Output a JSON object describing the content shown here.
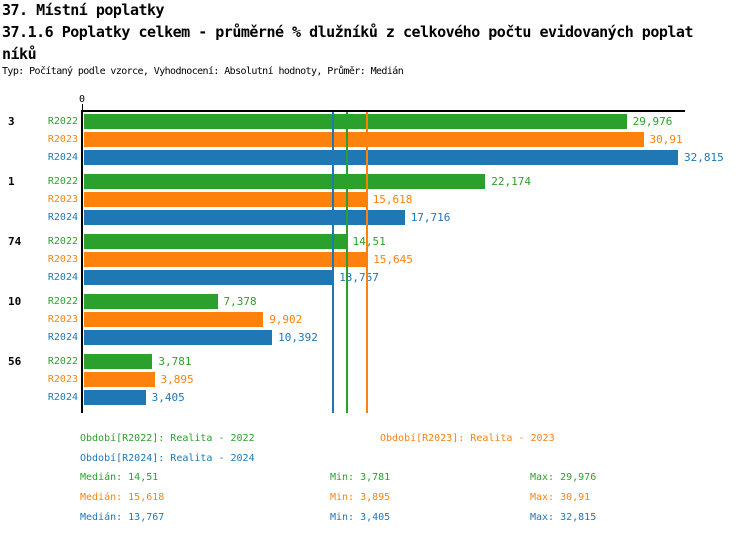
{
  "header": {
    "title": "37. Místní poplatky",
    "subtitle_line1": "37.1.6 Poplatky celkem - průměrné % dlužníků z celkového počtu evidovaných poplat",
    "subtitle_line2": "níků",
    "meta": "Typ: Počítaný podle vzorce, Vyhodnocení: Absolutní hodnoty, Průměr: Medián"
  },
  "colors": {
    "r2022": "#2CA02C",
    "r2023": "#FC820D",
    "r2024": "#1F77B4",
    "axis": "#000000",
    "background": "#FFFFFF"
  },
  "chart_data": {
    "type": "bar",
    "orientation": "horizontal",
    "title": "",
    "xlabel": "",
    "ylabel": "",
    "xlim": [
      0,
      33.2
    ],
    "x_tick_labels": [
      "0"
    ],
    "grid": false,
    "legend_position": "bottom",
    "categories": [
      "3",
      "1",
      "74",
      "10",
      "56"
    ],
    "series": [
      {
        "name": "R2022",
        "color": "#2CA02C",
        "values": [
          29.976,
          22.174,
          14.51,
          7.378,
          3.781
        ],
        "value_labels": [
          "29,976",
          "22,174",
          "14,51",
          "7,378",
          "3,781"
        ],
        "median": 14.51,
        "min": 3.781,
        "max": 29.976
      },
      {
        "name": "R2023",
        "color": "#FC820D",
        "values": [
          30.91,
          15.618,
          15.645,
          9.902,
          3.895
        ],
        "value_labels": [
          "30,91",
          "15,618",
          "15,645",
          "9,902",
          "3,895"
        ],
        "median": 15.618,
        "min": 3.895,
        "max": 30.91
      },
      {
        "name": "R2024",
        "color": "#1F77B4",
        "values": [
          32.815,
          17.716,
          13.767,
          10.392,
          3.405
        ],
        "value_labels": [
          "32,815",
          "17,716",
          "13,767",
          "10,392",
          "3,405"
        ],
        "median": 13.767,
        "min": 3.405,
        "max": 32.815
      }
    ],
    "median_lines": [
      {
        "series": "R2022",
        "value": 14.51,
        "color": "#2CA02C"
      },
      {
        "series": "R2023",
        "value": 15.618,
        "color": "#FC820D"
      },
      {
        "series": "R2024",
        "value": 13.767,
        "color": "#1F77B4"
      }
    ]
  },
  "legend": {
    "items": [
      {
        "id": "R2022",
        "label": "Období[R2022]: Realita - 2022",
        "color": "#2CA02C"
      },
      {
        "id": "R2023",
        "label": "Období[R2023]: Realita - 2023",
        "color": "#FC820D"
      },
      {
        "id": "R2024",
        "label": "Období[R2024]: Realita - 2024",
        "color": "#1F77B4"
      }
    ]
  },
  "stats": {
    "rows": [
      {
        "id": "R2022",
        "color": "#2CA02C",
        "median": "Medián: 14,51",
        "min": "Min: 3,781",
        "max": "Max: 29,976"
      },
      {
        "id": "R2023",
        "color": "#FC820D",
        "median": "Medián: 15,618",
        "min": "Min: 3,895",
        "max": "Max: 30,91"
      },
      {
        "id": "R2024",
        "color": "#1F77B4",
        "median": "Medián: 13,767",
        "min": "Min: 3,405",
        "max": "Max: 32,815"
      }
    ]
  }
}
